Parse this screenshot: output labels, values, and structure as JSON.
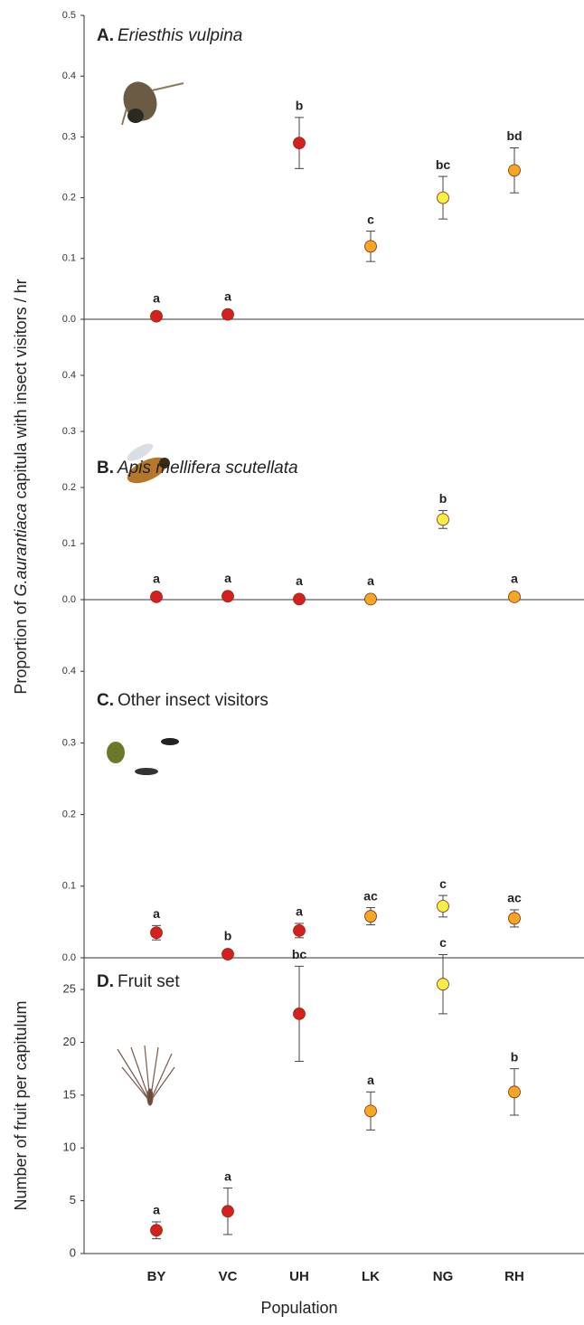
{
  "chart_data": [
    {
      "type": "scatter",
      "panel_label": "A.",
      "title": "Eriesthis vulpina",
      "title_italic": true,
      "ylabel": [
        "Proportion of ",
        "G.aurantiaca",
        " capitula with insect visitors / hr"
      ],
      "values": [
        0.005,
        0.008,
        0.29,
        0.12,
        0.2,
        0.245
      ],
      "errors": [
        null,
        null,
        0.042,
        0.025,
        0.035,
        0.037
      ],
      "letters": [
        "a",
        "a",
        "b",
        "c",
        "bc",
        "bd"
      ],
      "point_colors": [
        "#d61f1f",
        "#d61f1f",
        "#d61f1f",
        "#f5a623",
        "#f7ef45",
        "#f5a623"
      ],
      "ylim": [
        0,
        0.5
      ],
      "yticks": [
        {
          "value": 0,
          "label": "0.0"
        },
        0.1,
        0.2,
        0.3,
        0.4,
        0.5
      ]
    },
    {
      "type": "scatter",
      "panel_label": "B.",
      "title": "Apis mellifera scutellata",
      "title_italic": true,
      "values": [
        0.005,
        0.006,
        0.001,
        0.001,
        0.143,
        0.005
      ],
      "errors": [
        null,
        null,
        null,
        null,
        0.016,
        null
      ],
      "letters": [
        "a",
        "a",
        "a",
        "a",
        "b",
        "a"
      ],
      "point_colors": [
        "#d61f1f",
        "#d61f1f",
        "#d61f1f",
        "#f5a623",
        "#f7ef45",
        "#f5a623"
      ],
      "ylim": [
        0,
        0.5
      ],
      "yticks": [
        {
          "value": 0,
          "label": "0.0"
        },
        0.1,
        0.2,
        0.3,
        0.4
      ]
    },
    {
      "type": "scatter",
      "panel_label": "C.",
      "title": "Other insect visitors",
      "title_italic": false,
      "values": [
        0.035,
        0.005,
        0.038,
        0.058,
        0.072,
        0.055
      ],
      "errors": [
        0.01,
        null,
        0.01,
        0.012,
        0.015,
        0.012
      ],
      "letters": [
        "a",
        "b",
        "a",
        "ac",
        "c",
        "ac"
      ],
      "point_colors": [
        "#d61f1f",
        "#d61f1f",
        "#d61f1f",
        "#f5a623",
        "#f7ef45",
        "#f5a623"
      ],
      "ylim": [
        0,
        0.5
      ],
      "yticks": [
        {
          "value": 0,
          "label": "0.0"
        },
        0.1,
        0.2,
        0.3,
        0.4
      ]
    },
    {
      "type": "scatter",
      "panel_label": "D.",
      "title": "Fruit set",
      "title_italic": false,
      "ylabel": "Number of fruit per capitulum",
      "xlabel": "Population",
      "categories": [
        "BY",
        "VC",
        "UH",
        "LK",
        "NG",
        "RH"
      ],
      "values": [
        2.2,
        4.0,
        22.7,
        13.5,
        25.5,
        15.3
      ],
      "errors": [
        0.8,
        2.2,
        4.5,
        1.8,
        2.8,
        2.2
      ],
      "letters": [
        "a",
        "a",
        "bc",
        "a",
        "c",
        "b"
      ],
      "point_colors": [
        "#d61f1f",
        "#d61f1f",
        "#d61f1f",
        "#f5a623",
        "#f7ef45",
        "#f5a623"
      ],
      "ylim": [
        0,
        28
      ],
      "yticks": [
        0,
        5,
        10,
        15,
        20,
        25
      ]
    }
  ]
}
